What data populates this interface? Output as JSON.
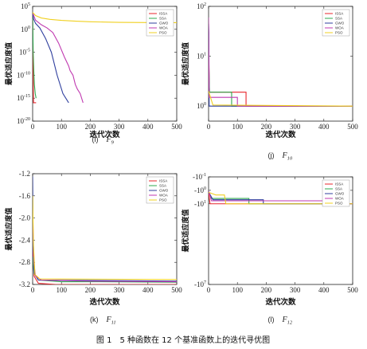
{
  "caption": "图 1　5 种函数在 12 个基准函数上的迭代寻优图",
  "chart_data": [
    {
      "id": "i",
      "type": "line",
      "panel_label": "(i)",
      "function": "F",
      "function_sub": "9",
      "xlabel": "迭代次数",
      "ylabel": "最优适应度值",
      "y_scale": "log",
      "xlim": [
        0,
        500
      ],
      "ylim": [
        1e-20,
        100000
      ],
      "x_ticks": [
        {
          "value": 0,
          "label": "0"
        },
        {
          "value": 100,
          "label": "100"
        },
        {
          "value": 200,
          "label": "200"
        },
        {
          "value": 300,
          "label": "300"
        },
        {
          "value": 400,
          "label": "400"
        },
        {
          "value": 500,
          "label": "500"
        }
      ],
      "y_ticks": [
        {
          "value": 100000,
          "base": "10",
          "exp": "5"
        },
        {
          "value": 1,
          "base": "10",
          "exp": "0"
        },
        {
          "value": 1e-05,
          "base": "10",
          "exp": "-5"
        },
        {
          "value": 1e-10,
          "base": "10",
          "exp": "-10"
        },
        {
          "value": 1e-15,
          "base": "10",
          "exp": "-15"
        },
        {
          "value": 1e-20,
          "base": "10",
          "exp": "-20"
        }
      ],
      "legend": [
        "ISSA",
        "SSA",
        "GWO",
        "WOA",
        "PSO"
      ],
      "series": [
        {
          "name": "ISSA",
          "color": "#e8262b",
          "points": [
            [
              0,
              3000
            ],
            [
              1,
              0.0001
            ],
            [
              2,
              1e-11
            ],
            [
              3,
              1e-16
            ],
            [
              4,
              1e-16
            ],
            [
              12,
              1e-16
            ]
          ]
        },
        {
          "name": "SSA",
          "color": "#2fa84f",
          "points": [
            [
              0,
              3000
            ],
            [
              2,
              1e-05
            ],
            [
              4,
              1e-09
            ],
            [
              6,
              1e-12
            ],
            [
              9,
              1e-14
            ],
            [
              12,
              1e-15
            ]
          ]
        },
        {
          "name": "GWO",
          "color": "#2f3f9e",
          "points": [
            [
              0,
              5000
            ],
            [
              3,
              200
            ],
            [
              10,
              20
            ],
            [
              25,
              2
            ],
            [
              45,
              0.01
            ],
            [
              65,
              1e-05
            ],
            [
              85,
              1e-10
            ],
            [
              105,
              1e-14
            ],
            [
              125,
              1e-16
            ]
          ]
        },
        {
          "name": "WOA",
          "color": "#c03ab0",
          "points": [
            [
              0,
              4000
            ],
            [
              10,
              100
            ],
            [
              30,
              10
            ],
            [
              50,
              2
            ],
            [
              70,
              0.2
            ],
            [
              90,
              0.001
            ],
            [
              110,
              1e-06
            ],
            [
              125,
              1e-08
            ],
            [
              130,
              1e-09
            ],
            [
              140,
              1e-10
            ],
            [
              148,
              1e-12
            ],
            [
              155,
              1e-13
            ],
            [
              165,
              1e-14
            ],
            [
              175,
              1e-16
            ]
          ]
        },
        {
          "name": "PSO",
          "color": "#f0d020",
          "points": [
            [
              0,
              5000
            ],
            [
              10,
              1000
            ],
            [
              30,
              300
            ],
            [
              60,
              150
            ],
            [
              100,
              90
            ],
            [
              150,
              60
            ],
            [
              200,
              45
            ],
            [
              250,
              38
            ],
            [
              300,
              33
            ],
            [
              400,
              30
            ],
            [
              500,
              28
            ]
          ]
        }
      ]
    },
    {
      "id": "j",
      "type": "line",
      "panel_label": "(j)",
      "function": "F",
      "function_sub": "10",
      "xlabel": "迭代次数",
      "ylabel": "最优适应度值",
      "y_scale": "log",
      "xlim": [
        0,
        500
      ],
      "ylim": [
        0.5,
        100
      ],
      "x_ticks": [
        {
          "value": 0,
          "label": "0"
        },
        {
          "value": 100,
          "label": "100"
        },
        {
          "value": 200,
          "label": "200"
        },
        {
          "value": 300,
          "label": "300"
        },
        {
          "value": 400,
          "label": "400"
        },
        {
          "value": 500,
          "label": "500"
        }
      ],
      "y_ticks": [
        {
          "value": 100,
          "base": "10",
          "exp": "2"
        },
        {
          "value": 10,
          "base": "10",
          "exp": "1"
        },
        {
          "value": 1,
          "base": "10",
          "exp": "0"
        }
      ],
      "legend": [
        "ISSA",
        "SSA",
        "GWO",
        "WOA",
        "PSO"
      ],
      "series": [
        {
          "name": "ISSA",
          "color": "#e8262b",
          "points": [
            [
              0,
              18
            ],
            [
              3,
              1.9
            ],
            [
              130,
              1.9
            ],
            [
              130,
              1
            ],
            [
              500,
              1
            ]
          ]
        },
        {
          "name": "SSA",
          "color": "#2fa84f",
          "points": [
            [
              0,
              12
            ],
            [
              3,
              1.9
            ],
            [
              80,
              1.9
            ],
            [
              80,
              1
            ],
            [
              500,
              1
            ]
          ]
        },
        {
          "name": "GWO",
          "color": "#2f3f9e",
          "points": [
            [
              0,
              45
            ],
            [
              1,
              30
            ],
            [
              2,
              1
            ],
            [
              500,
              1
            ]
          ]
        },
        {
          "name": "WOA",
          "color": "#c03ab0",
          "points": [
            [
              0,
              60
            ],
            [
              2,
              1.5
            ],
            [
              100,
              1.5
            ],
            [
              100,
              1
            ],
            [
              500,
              1
            ]
          ]
        },
        {
          "name": "PSO",
          "color": "#f0d020",
          "points": [
            [
              0,
              2
            ],
            [
              15,
              1.05
            ],
            [
              500,
              1
            ]
          ]
        }
      ]
    },
    {
      "id": "k",
      "type": "line",
      "panel_label": "(k)",
      "function": "F",
      "function_sub": "11",
      "xlabel": "迭代次数",
      "ylabel": "最优适应度值",
      "y_scale": "linear",
      "xlim": [
        0,
        500
      ],
      "ylim": [
        -3.2,
        -1.2
      ],
      "x_ticks": [
        {
          "value": 0,
          "label": "0"
        },
        {
          "value": 100,
          "label": "100"
        },
        {
          "value": 200,
          "label": "200"
        },
        {
          "value": 300,
          "label": "300"
        },
        {
          "value": 400,
          "label": "400"
        },
        {
          "value": 500,
          "label": "500"
        }
      ],
      "y_ticks": [
        {
          "value": -1.2,
          "label": "-1.2"
        },
        {
          "value": -1.6,
          "label": "-1.6"
        },
        {
          "value": -2.0,
          "label": "-2.0"
        },
        {
          "value": -2.4,
          "label": "-2.4"
        },
        {
          "value": -2.8,
          "label": "-2.8"
        },
        {
          "value": -3.2,
          "label": "-3.2"
        }
      ],
      "legend": [
        "ISSA",
        "SSA",
        "GWO",
        "WOA",
        "PSO"
      ],
      "series": [
        {
          "name": "ISSA",
          "color": "#e8262b",
          "points": [
            [
              0,
              -2.6
            ],
            [
              5,
              -3.05
            ],
            [
              20,
              -3.18
            ],
            [
              80,
              -3.2
            ],
            [
              500,
              -3.2
            ]
          ]
        },
        {
          "name": "SSA",
          "color": "#2fa84f",
          "points": [
            [
              0,
              -2.7
            ],
            [
              5,
              -3.0
            ],
            [
              20,
              -3.12
            ],
            [
              100,
              -3.15
            ],
            [
              200,
              -3.15
            ],
            [
              500,
              -3.16
            ]
          ]
        },
        {
          "name": "GWO",
          "color": "#2f3f9e",
          "points": [
            [
              0,
              -1.25
            ],
            [
              2,
              -2.6
            ],
            [
              6,
              -3.0
            ],
            [
              20,
              -3.12
            ],
            [
              500,
              -3.14
            ]
          ]
        },
        {
          "name": "WOA",
          "color": "#c03ab0",
          "points": [
            [
              0,
              -1.9
            ],
            [
              4,
              -2.8
            ],
            [
              10,
              -3.05
            ],
            [
              30,
              -3.12
            ],
            [
              200,
              -3.14
            ],
            [
              500,
              -3.15
            ]
          ]
        },
        {
          "name": "PSO",
          "color": "#f0d020",
          "points": [
            [
              0,
              -1.6
            ],
            [
              3,
              -2.5
            ],
            [
              8,
              -3.02
            ],
            [
              25,
              -3.1
            ],
            [
              500,
              -3.11
            ]
          ]
        }
      ]
    },
    {
      "id": "l",
      "type": "line",
      "panel_label": "(l)",
      "function": "F",
      "function_sub": "12",
      "xlabel": "迭代次数",
      "ylabel": "最优适应度值",
      "y_scale": "log",
      "negative_log": true,
      "xlim": [
        0,
        500
      ],
      "ylim": [
        0.1,
        10000000
      ],
      "x_ticks": [
        {
          "value": 0,
          "label": "0"
        },
        {
          "value": 100,
          "label": "100"
        },
        {
          "value": 200,
          "label": "200"
        },
        {
          "value": 300,
          "label": "300"
        },
        {
          "value": 400,
          "label": "400"
        },
        {
          "value": 500,
          "label": "500"
        }
      ],
      "y_ticks": [
        {
          "value": 0.1,
          "base": "-10",
          "exp": "-1"
        },
        {
          "value": 1,
          "base": "-10",
          "exp": "0"
        },
        {
          "value": 10,
          "base": "-10",
          "exp": "1"
        },
        {
          "value": 10000000,
          "base": "-10",
          "exp": "7"
        }
      ],
      "legend": [
        "ISSA",
        "SSA",
        "GWO",
        "WOA",
        "PSO"
      ],
      "series": [
        {
          "name": "ISSA",
          "color": "#e8262b",
          "points": [
            [
              0,
              1.5
            ],
            [
              5,
              10
            ],
            [
              500,
              10
            ]
          ]
        },
        {
          "name": "SSA",
          "color": "#2fa84f",
          "points": [
            [
              0,
              1.2
            ],
            [
              10,
              4
            ],
            [
              140,
              4
            ],
            [
              140,
              10
            ],
            [
              500,
              10
            ]
          ]
        },
        {
          "name": "GWO",
          "color": "#2f3f9e",
          "points": [
            [
              0,
              1.3
            ],
            [
              15,
              5
            ],
            [
              190,
              5
            ],
            [
              190,
              10
            ],
            [
              500,
              10
            ]
          ]
        },
        {
          "name": "WOA",
          "color": "#c03ab0",
          "points": [
            [
              0,
              1.1
            ],
            [
              10,
              6
            ],
            [
              400,
              6
            ],
            [
              400,
              10
            ],
            [
              500,
              10
            ]
          ]
        },
        {
          "name": "PSO",
          "color": "#f0d020",
          "points": [
            [
              0,
              1.4
            ],
            [
              25,
              2.2
            ],
            [
              55,
              2.2
            ],
            [
              60,
              10
            ],
            [
              500,
              10
            ]
          ]
        }
      ]
    }
  ]
}
